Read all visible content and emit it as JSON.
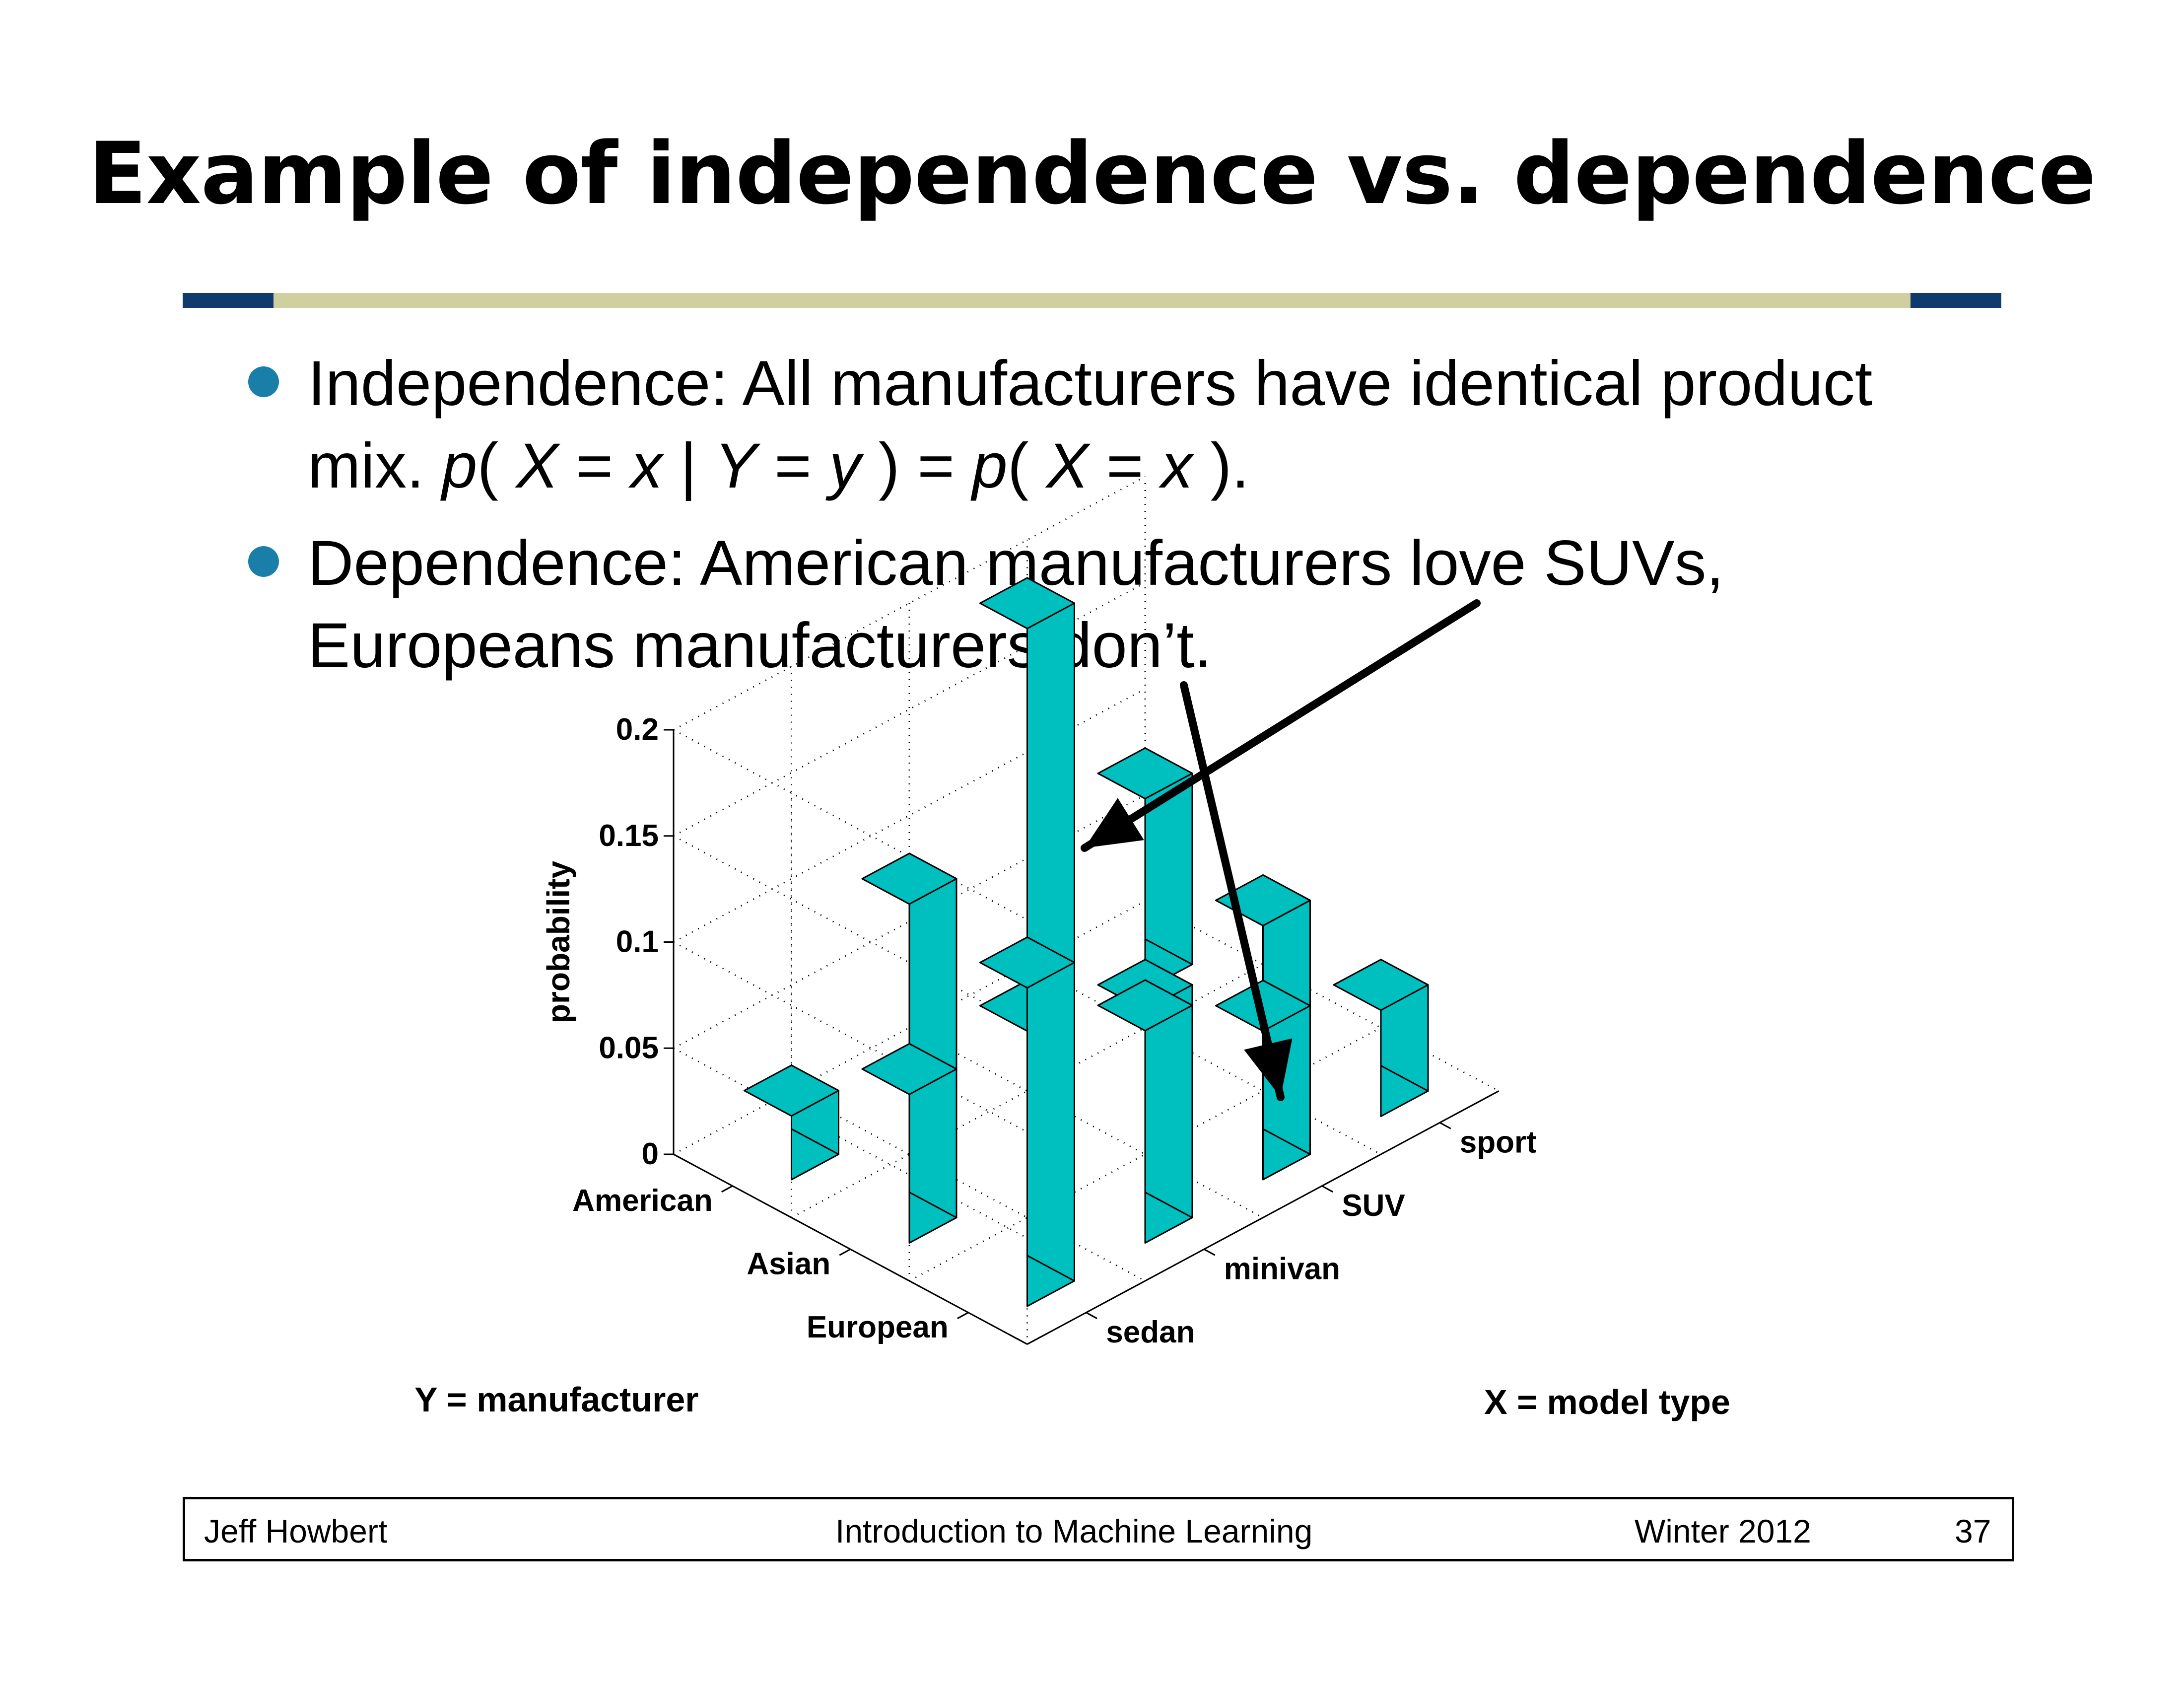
{
  "slide": {
    "title": "Example of independence vs. dependence",
    "bullets": [
      {
        "line1": "Independence: All manufacturers have identical product",
        "line2": {
          "mix": "mix. ",
          "p1": "p",
          "open1": "( ",
          "X1": "X",
          "eq1": " = ",
          "x1": "x",
          "bar": " | ",
          "Y": "Y",
          "eq2": " = ",
          "y": "y",
          "close1": " ) = ",
          "p2": "p",
          "open2": "( ",
          "X2": "X",
          "eq3": " = ",
          "x2": "x",
          "close2": " )."
        }
      },
      {
        "line1": "Dependence: American manufacturers love SUVs,",
        "line2": "Europeans manufacturers don’t."
      }
    ]
  },
  "colors": {
    "bar_face": "#00BFBF",
    "bar_edge": "#000000",
    "bullet": "#1A7FA8",
    "rule_dark": "#0E3A6E",
    "rule_light": "#CFCFA0"
  },
  "chart_data": {
    "type": "bar3d",
    "categories_y": [
      "American",
      "Asian",
      "European"
    ],
    "categories_x": [
      "sedan",
      "minivan",
      "SUV",
      "sport"
    ],
    "ylabel": "Y = manufacturer",
    "xlabel": "X = model type",
    "zlabel": "probability",
    "zlim": [
      0,
      0.2
    ],
    "zticks": [
      "0",
      "0.05",
      "0.1",
      "0.15",
      "0.2"
    ],
    "grid": true,
    "values": [
      [
        0.03,
        0.1,
        0.2,
        0.09
      ],
      [
        0.07,
        0.07,
        0.05,
        0.06
      ],
      [
        0.15,
        0.1,
        0.07,
        0.05
      ]
    ]
  },
  "footer": {
    "author": "Jeff Howbert",
    "course": "Introduction to Machine Learning",
    "term": "Winter 2012",
    "page": "37"
  }
}
